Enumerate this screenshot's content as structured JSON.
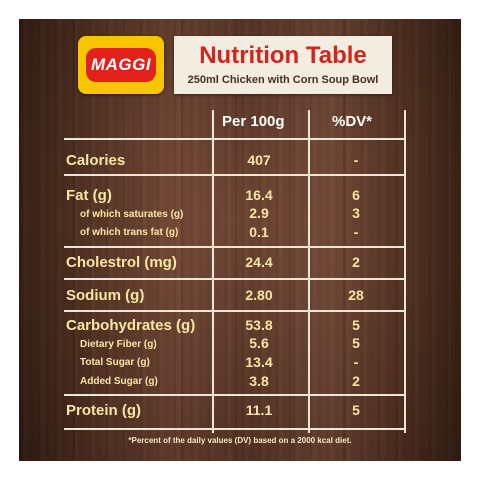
{
  "brand": {
    "logo_text": "MAGGI"
  },
  "header": {
    "title": "Nutrition Table",
    "subtitle": "250ml Chicken with Corn Soup Bowl"
  },
  "table": {
    "columns": [
      "Per 100g",
      "%DV*"
    ],
    "rows": [
      {
        "label": "Calories",
        "per100g": "407",
        "dv": "-"
      },
      {
        "label": "Fat (g)",
        "per100g": "16.4",
        "dv": "6"
      },
      {
        "label": "of which saturates (g)",
        "per100g": "2.9",
        "dv": "3"
      },
      {
        "label": "of which trans fat (g)",
        "per100g": "0.1",
        "dv": "-"
      },
      {
        "label": "Cholestrol (mg)",
        "per100g": "24.4",
        "dv": "2"
      },
      {
        "label": "Sodium (g)",
        "per100g": "2.80",
        "dv": "28"
      },
      {
        "label": "Carbohydrates (g)",
        "per100g": "53.8",
        "dv": "5"
      },
      {
        "label": "Dietary Fiber (g)",
        "per100g": "5.6",
        "dv": "5"
      },
      {
        "label": "Total Sugar (g)",
        "per100g": "13.4",
        "dv": "-"
      },
      {
        "label": "Added Sugar (g)",
        "per100g": "3.8",
        "dv": "2"
      },
      {
        "label": "Protein (g)",
        "per100g": "11.1",
        "dv": "5"
      }
    ],
    "footnote": "*Percent of the daily values (DV) based on a 2000 kcal diet."
  },
  "colors": {
    "brand_yellow": "#f7c600",
    "brand_red": "#e3211c",
    "label_text": "#f8e6a4"
  }
}
